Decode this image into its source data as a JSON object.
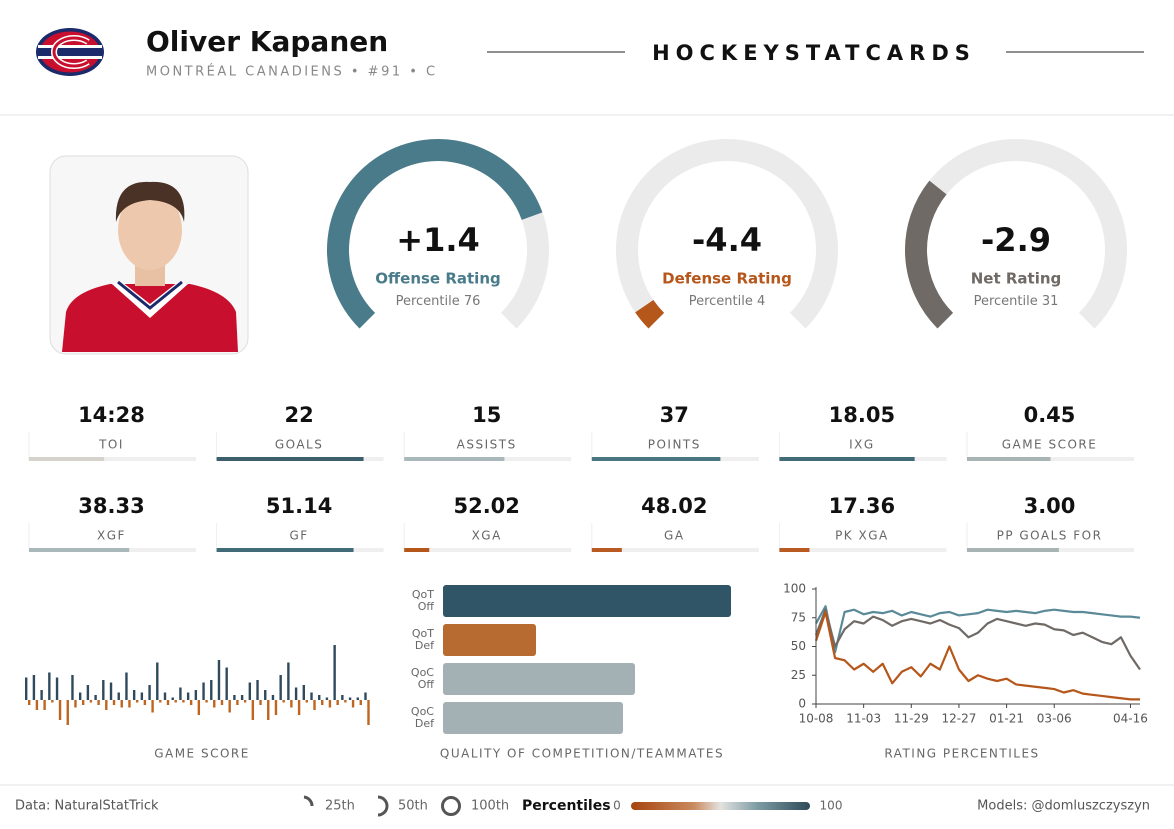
{
  "header": {
    "name": "Oliver Kapanen",
    "subtitle": "MONTRÉAL CANADIENS • #91 • C",
    "brand": "HOCKEYSTATCARDS"
  },
  "gauges": [
    {
      "rating": "+1.4",
      "label": "Offense Rating",
      "percentile_label": "Percentile",
      "percentile": 76,
      "color": "#4a7b8a"
    },
    {
      "rating": "-4.4",
      "label": "Defense Rating",
      "percentile_label": "Percentile",
      "percentile": 4,
      "color": "#b5561a"
    },
    {
      "rating": "-2.9",
      "label": "Net Rating",
      "percentile_label": "Percentile",
      "percentile": 31,
      "color": "#6f6a66"
    }
  ],
  "stats": [
    {
      "value": "14:28",
      "label": "TOI",
      "percentile": 45,
      "color": "#d6d2cc"
    },
    {
      "value": "22",
      "label": "GOALS",
      "percentile": 88,
      "color": "#3d5f6c"
    },
    {
      "value": "15",
      "label": "ASSISTS",
      "percentile": 60,
      "color": "#a9b8bb"
    },
    {
      "value": "37",
      "label": "POINTS",
      "percentile": 77,
      "color": "#4a7682"
    },
    {
      "value": "18.05",
      "label": "IXG",
      "percentile": 81,
      "color": "#426b78"
    },
    {
      "value": "0.45",
      "label": "GAME SCORE",
      "percentile": 50,
      "color": "#a8b3b4"
    },
    {
      "value": "38.33",
      "label": "XGF",
      "percentile": 60,
      "color": "#a9b8bb"
    },
    {
      "value": "51.14",
      "label": "GF",
      "percentile": 82,
      "color": "#426b78"
    },
    {
      "value": "52.02",
      "label": "XGA",
      "percentile": 15,
      "color": "#b5561a"
    },
    {
      "value": "48.02",
      "label": "GA",
      "percentile": 18,
      "color": "#b85a22"
    },
    {
      "value": "17.36",
      "label": "PK XGA",
      "percentile": 18,
      "color": "#b85a22"
    },
    {
      "value": "3.00",
      "label": "PP GOALS FOR",
      "percentile": 55,
      "color": "#a8b3b4"
    }
  ],
  "game_score_chart": {
    "type": "bar",
    "title": "GAME SCORE",
    "series": [
      {
        "color": "#2f4a5c",
        "values": [
          0.9,
          1.0,
          0.4,
          1.1,
          0.9,
          0,
          1.0,
          0.3,
          0.6,
          0.2,
          0.8,
          0.7,
          0.3,
          1.1,
          0.4,
          0.3,
          0.6,
          1.5,
          0.3,
          0.1,
          0.5,
          0.3,
          0.4,
          0.7,
          0.8,
          1.6,
          1.3,
          0.2,
          0.2,
          0.7,
          0.8,
          0.4,
          0.2,
          1.0,
          1.5,
          0.5,
          0.6,
          0.3,
          0.2,
          0.1,
          2.2,
          0.2,
          0.1,
          0.1,
          0.3
        ]
      },
      {
        "color": "#c0651f",
        "values": [
          -0.2,
          -0.4,
          -0.4,
          -0.1,
          -0.8,
          -1.0,
          -0.3,
          -0.2,
          -0.1,
          -0.2,
          -0.4,
          -0.2,
          -0.3,
          -0.3,
          -0.1,
          -0.2,
          -0.5,
          -0.1,
          -0.2,
          -0.1,
          -0.1,
          -0.2,
          -0.6,
          -0.1,
          -0.3,
          -0.2,
          -0.5,
          -0.2,
          -0.1,
          -0.8,
          -0.2,
          -0.8,
          -0.6,
          -0.1,
          -0.3,
          -0.6,
          -0.1,
          -0.4,
          -0.2,
          -0.3,
          -0.2,
          -0.1,
          -0.3,
          -0.2,
          -1.0
        ]
      }
    ]
  },
  "quality_chart": {
    "type": "bar",
    "title": "QUALITY OF COMPETITION/TEAMMATES",
    "categories": [
      [
        "QoT",
        "Off"
      ],
      [
        "QoT",
        "Def"
      ],
      [
        "QoC",
        "Off"
      ],
      [
        "QoC",
        "Def"
      ]
    ],
    "values": [
      96,
      31,
      64,
      60
    ],
    "colors": [
      "#2f5566",
      "#b86b30",
      "#a3b0b4",
      "#a3b0b4"
    ]
  },
  "rating_chart": {
    "type": "line",
    "title": "RATING PERCENTILES",
    "xlim": [
      0,
      34
    ],
    "ylim": [
      0,
      100
    ],
    "yticks": [
      0,
      25,
      50,
      75,
      100
    ],
    "xticks": [
      {
        "value": 0,
        "label": "10-08"
      },
      {
        "value": 5,
        "label": "11-03"
      },
      {
        "value": 10,
        "label": "11-29"
      },
      {
        "value": 15,
        "label": "12-27"
      },
      {
        "value": 20,
        "label": "01-21"
      },
      {
        "value": 25,
        "label": "03-06"
      },
      {
        "value": 33,
        "label": "04-16"
      }
    ],
    "series": [
      {
        "color": "#5a8a98",
        "values": [
          70,
          85,
          45,
          80,
          82,
          78,
          80,
          79,
          81,
          77,
          80,
          78,
          76,
          79,
          80,
          77,
          78,
          79,
          82,
          81,
          80,
          81,
          80,
          79,
          81,
          82,
          81,
          80,
          80,
          79,
          78,
          77,
          76,
          76,
          75
        ]
      },
      {
        "color": "#6f6a66",
        "values": [
          60,
          82,
          50,
          65,
          72,
          70,
          76,
          73,
          68,
          72,
          74,
          72,
          70,
          73,
          69,
          66,
          58,
          62,
          70,
          74,
          72,
          70,
          68,
          70,
          69,
          65,
          64,
          60,
          62,
          58,
          54,
          52,
          58,
          42,
          30
        ]
      },
      {
        "color": "#b5561a",
        "values": [
          55,
          80,
          40,
          38,
          30,
          35,
          28,
          35,
          18,
          28,
          32,
          24,
          35,
          30,
          50,
          30,
          20,
          25,
          22,
          20,
          22,
          17,
          16,
          15,
          14,
          13,
          10,
          12,
          9,
          8,
          7,
          6,
          5,
          4,
          4
        ]
      }
    ]
  },
  "footer": {
    "source": "Data: NaturalStatTrick",
    "legend": [
      "25th",
      "50th",
      "100th"
    ],
    "scale_title": "Percentiles",
    "scale_min": 0,
    "scale_max": 100,
    "credit": "Models: @domluszczyszyn"
  }
}
